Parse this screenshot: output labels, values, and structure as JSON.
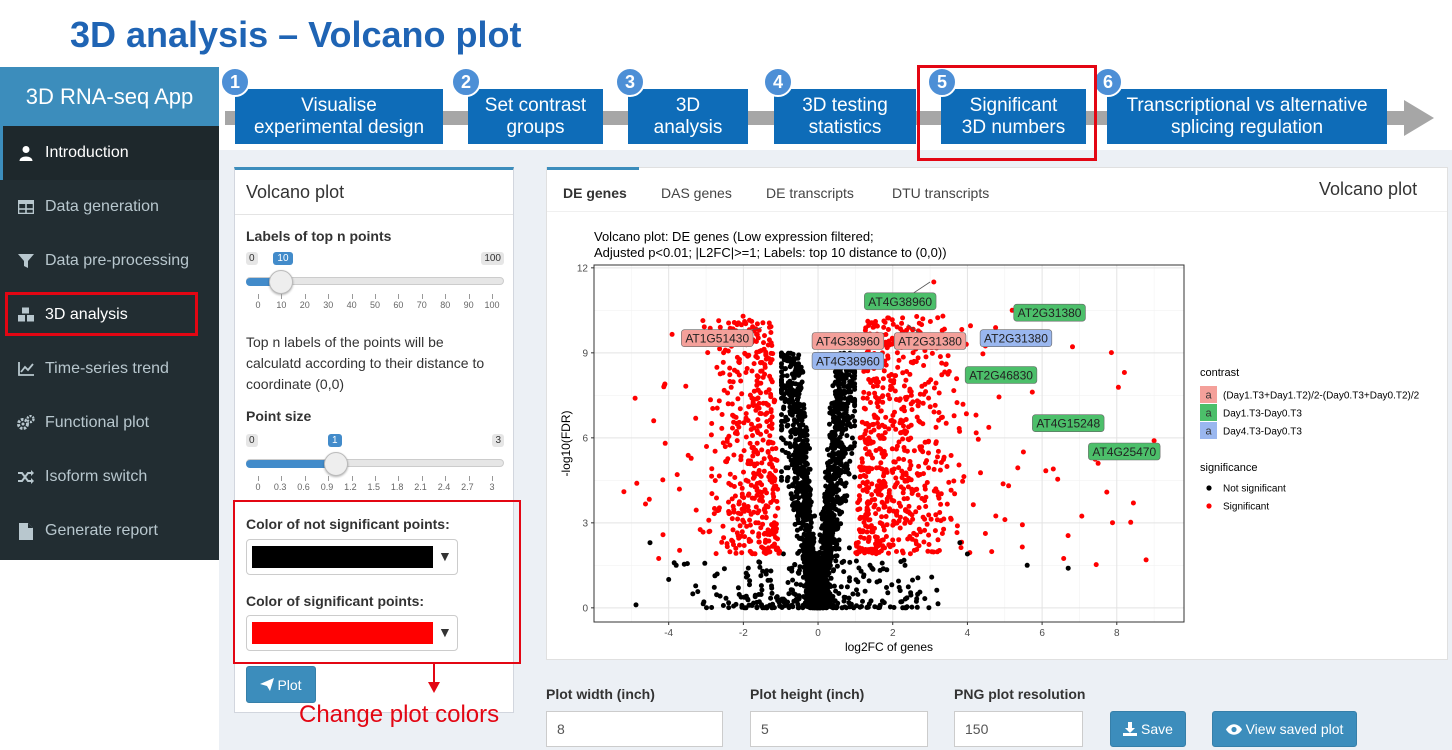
{
  "slide_title": "3D analysis – Volcano plot",
  "app": {
    "title": "3D RNA-seq App"
  },
  "sidebar": {
    "items": [
      {
        "label": "Introduction",
        "icon": "user-icon",
        "active": true
      },
      {
        "label": "Data generation",
        "icon": "table-icon"
      },
      {
        "label": "Data pre-processing",
        "icon": "filter-icon"
      },
      {
        "label": "3D analysis",
        "icon": "cubes-icon"
      },
      {
        "label": "Time-series trend",
        "icon": "line-chart-icon"
      },
      {
        "label": "Functional plot",
        "icon": "cogs-icon"
      },
      {
        "label": "Isoform switch",
        "icon": "random-icon"
      },
      {
        "label": "Generate report",
        "icon": "file-icon"
      }
    ]
  },
  "workflow": {
    "steps": [
      {
        "num": "1",
        "line1": "Visualise",
        "line2": "experimental design"
      },
      {
        "num": "2",
        "line1": "Set contrast",
        "line2": "groups"
      },
      {
        "num": "3",
        "line1": "3D",
        "line2": "analysis"
      },
      {
        "num": "4",
        "line1": "3D testing",
        "line2": "statistics"
      },
      {
        "num": "5",
        "line1": "Significant",
        "line2": "3D numbers"
      },
      {
        "num": "6",
        "line1": "Transcriptional vs alternative",
        "line2": "splicing regulation"
      }
    ]
  },
  "left_panel": {
    "title": "Volcano plot",
    "top_n": {
      "label": "Labels of top n points",
      "min": "0",
      "max": "100",
      "value": "10",
      "value_num": 10,
      "max_num": 100,
      "ticks": [
        "0",
        "10",
        "20",
        "30",
        "40",
        "50",
        "60",
        "70",
        "80",
        "90",
        "100"
      ]
    },
    "top_n_desc_lines": [
      "Top n labels of the points will be",
      "calculatd according to their distance to",
      "coordinate (0,0)"
    ],
    "point_size": {
      "label": "Point size",
      "min": "0",
      "max": "3",
      "value": "1",
      "value_num": 1,
      "max_num": 3,
      "ticks": [
        "0",
        "0.3",
        "0.6",
        "0.9",
        "1.2",
        "1.5",
        "1.8",
        "2.1",
        "2.4",
        "2.7",
        "3"
      ]
    },
    "not_sig_color": {
      "label": "Color of not significant points:",
      "value": "#000000"
    },
    "sig_color": {
      "label": "Color of significant points:",
      "value": "#ff0000"
    },
    "plot_button": "Plot",
    "annotation": "Change plot colors"
  },
  "right_panel": {
    "tabs": [
      "DE genes",
      "DAS genes",
      "DE transcripts",
      "DTU transcripts"
    ],
    "active_tab": 0,
    "box_title": "Volcano plot",
    "width_label": "Plot width (inch)",
    "width_value": "8",
    "height_label": "Plot height (inch)",
    "height_value": "5",
    "res_label": "PNG plot resolution",
    "res_value": "150",
    "save_button": "Save",
    "view_button": "View saved plot"
  },
  "chart_data": {
    "type": "scatter",
    "title": "Volcano plot: DE genes (Low expression filtered;",
    "subtitle": "Adjusted p<0.01; |L2FC|>=1; Labels: top 10 distance to (0,0))",
    "xlabel": "log2FC of genes",
    "ylabel": "-log10(FDR)",
    "xlim": [
      -6,
      9.8
    ],
    "ylim": [
      -0.5,
      12.1
    ],
    "xticks": [
      -4,
      -2,
      0,
      2,
      4,
      6,
      8
    ],
    "yticks": [
      0,
      3,
      6,
      9,
      12
    ],
    "grid": true,
    "colors": {
      "not_significant": "#000000",
      "significant": "#ff0000"
    },
    "legend_contrast": {
      "title": "contrast",
      "entries": [
        {
          "label": "(Day1.T3+Day1.T2)/2-(Day0.T3+Day0.T2)/2",
          "color": "#f4a09a"
        },
        {
          "label": "Day1.T3-Day0.T3",
          "color": "#4cbf6a"
        },
        {
          "label": "Day4.T3-Day0.T3",
          "color": "#9ab7ef"
        }
      ],
      "key_glyph": "a"
    },
    "legend_significance": {
      "title": "significance",
      "entries": [
        {
          "label": "Not significant",
          "color": "#000000"
        },
        {
          "label": "Significant",
          "color": "#ff0000"
        }
      ]
    },
    "labels": [
      {
        "text": "AT4G38960",
        "contrast": 1,
        "x": 3.0,
        "y": 11.5,
        "lx": 2.2,
        "ly": 10.8
      },
      {
        "text": "AT2G31380",
        "contrast": 1,
        "x": 5.2,
        "y": 10.5,
        "lx": 6.2,
        "ly": 10.4
      },
      {
        "text": "AT1G51430",
        "contrast": 0,
        "x": -1.5,
        "y": 9.9,
        "lx": -2.7,
        "ly": 9.5
      },
      {
        "text": "AT4G38960",
        "contrast": 0,
        "x": 1.0,
        "y": 9.4,
        "lx": 0.8,
        "ly": 9.4
      },
      {
        "text": "AT2G31380",
        "contrast": 0,
        "x": 2.4,
        "y": 10.0,
        "lx": 3.0,
        "ly": 9.4
      },
      {
        "text": "AT2G31380",
        "contrast": 2,
        "x": 5.0,
        "y": 9.8,
        "lx": 5.3,
        "ly": 9.5
      },
      {
        "text": "AT4G38960",
        "contrast": 2,
        "x": 0.9,
        "y": 8.8,
        "lx": 0.8,
        "ly": 8.7
      },
      {
        "text": "AT2G46830",
        "contrast": 1,
        "x": 5.0,
        "y": 8.2,
        "lx": 4.9,
        "ly": 8.2
      },
      {
        "text": "AT4G15248",
        "contrast": 1,
        "x": 5.8,
        "y": 6.4,
        "lx": 6.7,
        "ly": 6.5
      },
      {
        "text": "AT4G25470",
        "contrast": 1,
        "x": 8.0,
        "y": 5.3,
        "lx": 8.2,
        "ly": 5.5
      }
    ]
  },
  "colors": {
    "accent": "#3c8dbc",
    "sidebar_bg": "#222d32",
    "step_bg": "#0e6cb8",
    "highlight": "#e30613"
  }
}
